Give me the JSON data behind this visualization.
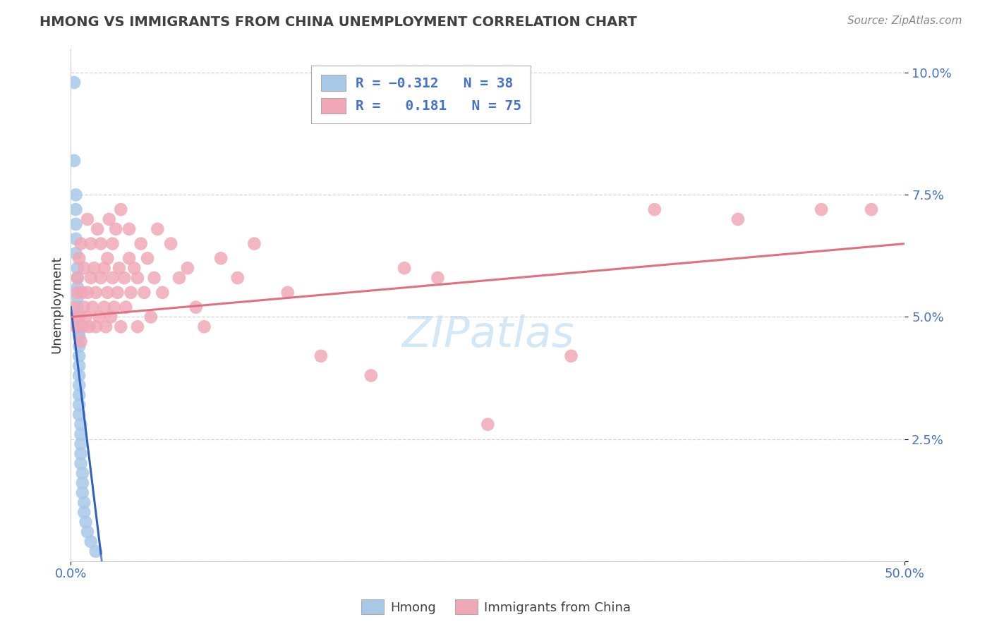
{
  "title": "HMONG VS IMMIGRANTS FROM CHINA UNEMPLOYMENT CORRELATION CHART",
  "source": "Source: ZipAtlas.com",
  "ylabel": "Unemployment",
  "hmong_color": "#a8c8e8",
  "china_color": "#f0a8b8",
  "hmong_line_color": "#3060c0",
  "china_line_color": "#e07080",
  "background_color": "#ffffff",
  "grid_color": "#c8c8c8",
  "xmin": 0.0,
  "xmax": 0.5,
  "ymin": 0.0,
  "ymax": 0.105,
  "hmong_R": -0.312,
  "hmong_N": 38,
  "china_R": 0.181,
  "china_N": 75,
  "watermark": "ZIPatlas",
  "hmong_points_x": [
    0.002,
    0.002,
    0.003,
    0.003,
    0.003,
    0.003,
    0.003,
    0.004,
    0.004,
    0.004,
    0.004,
    0.004,
    0.004,
    0.004,
    0.005,
    0.005,
    0.005,
    0.005,
    0.005,
    0.005,
    0.005,
    0.005,
    0.005,
    0.005,
    0.006,
    0.006,
    0.006,
    0.006,
    0.006,
    0.007,
    0.007,
    0.007,
    0.008,
    0.008,
    0.009,
    0.01,
    0.012,
    0.015
  ],
  "hmong_points_y": [
    0.098,
    0.082,
    0.075,
    0.072,
    0.069,
    0.066,
    0.063,
    0.06,
    0.058,
    0.056,
    0.054,
    0.052,
    0.05,
    0.048,
    0.047,
    0.046,
    0.044,
    0.042,
    0.04,
    0.038,
    0.036,
    0.034,
    0.032,
    0.03,
    0.028,
    0.026,
    0.024,
    0.022,
    0.02,
    0.018,
    0.016,
    0.014,
    0.012,
    0.01,
    0.008,
    0.006,
    0.004,
    0.002
  ],
  "china_points_x": [
    0.002,
    0.003,
    0.004,
    0.004,
    0.005,
    0.005,
    0.006,
    0.006,
    0.007,
    0.007,
    0.008,
    0.008,
    0.009,
    0.01,
    0.01,
    0.011,
    0.012,
    0.012,
    0.013,
    0.014,
    0.015,
    0.015,
    0.016,
    0.017,
    0.018,
    0.018,
    0.02,
    0.02,
    0.021,
    0.022,
    0.022,
    0.023,
    0.024,
    0.025,
    0.025,
    0.026,
    0.027,
    0.028,
    0.029,
    0.03,
    0.03,
    0.032,
    0.033,
    0.035,
    0.035,
    0.036,
    0.038,
    0.04,
    0.04,
    0.042,
    0.044,
    0.046,
    0.048,
    0.05,
    0.052,
    0.055,
    0.06,
    0.065,
    0.07,
    0.075,
    0.08,
    0.09,
    0.1,
    0.11,
    0.13,
    0.15,
    0.18,
    0.2,
    0.22,
    0.25,
    0.3,
    0.35,
    0.4,
    0.45,
    0.48
  ],
  "china_points_y": [
    0.052,
    0.048,
    0.055,
    0.058,
    0.05,
    0.062,
    0.045,
    0.065,
    0.048,
    0.055,
    0.052,
    0.06,
    0.05,
    0.055,
    0.07,
    0.048,
    0.058,
    0.065,
    0.052,
    0.06,
    0.048,
    0.055,
    0.068,
    0.05,
    0.058,
    0.065,
    0.052,
    0.06,
    0.048,
    0.062,
    0.055,
    0.07,
    0.05,
    0.058,
    0.065,
    0.052,
    0.068,
    0.055,
    0.06,
    0.048,
    0.072,
    0.058,
    0.052,
    0.062,
    0.068,
    0.055,
    0.06,
    0.048,
    0.058,
    0.065,
    0.055,
    0.062,
    0.05,
    0.058,
    0.068,
    0.055,
    0.065,
    0.058,
    0.06,
    0.052,
    0.048,
    0.062,
    0.058,
    0.065,
    0.055,
    0.042,
    0.038,
    0.06,
    0.058,
    0.028,
    0.042,
    0.072,
    0.07,
    0.072,
    0.072
  ]
}
